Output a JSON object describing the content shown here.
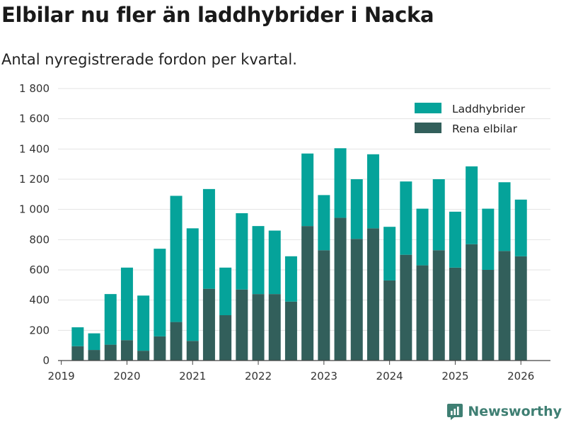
{
  "header": {
    "title": "Elbilar nu fler än laddhybrider i Nacka",
    "subtitle": "Antal nyregistrerade fordon per kvartal."
  },
  "brand": {
    "name": "Newsworthy"
  },
  "colors": {
    "hybrid": "#05a39a",
    "electric": "#325f5b",
    "grid": "#e3e3e3",
    "axis": "#444444"
  },
  "chart_data": {
    "type": "bar",
    "stacked": true,
    "title": "Elbilar nu fler än laddhybrider i Nacka",
    "subtitle": "Antal nyregistrerade fordon per kvartal.",
    "xlabel": "",
    "ylabel": "",
    "ylim": [
      0,
      1800
    ],
    "yticks": [
      0,
      200,
      400,
      600,
      800,
      1000,
      1200,
      1400,
      1600,
      1800
    ],
    "ytick_labels": [
      "0",
      "200",
      "400",
      "600",
      "800",
      "1 000",
      "1 200",
      "1 400",
      "1 600",
      "1 800"
    ],
    "xticks": [
      2019,
      2020,
      2021,
      2022,
      2023,
      2024,
      2025,
      2026
    ],
    "xlim": [
      2018.95,
      2026.45
    ],
    "legend_position": "top-right",
    "categories": [
      "2019 Q2",
      "2019 Q3",
      "2019 Q4",
      "2020 Q1",
      "2020 Q2",
      "2020 Q3",
      "2020 Q4",
      "2021 Q1",
      "2021 Q2",
      "2021 Q3",
      "2021 Q4",
      "2022 Q1",
      "2022 Q2",
      "2022 Q3",
      "2022 Q4",
      "2023 Q1",
      "2023 Q2",
      "2023 Q3",
      "2023 Q4",
      "2024 Q1",
      "2024 Q2",
      "2024 Q3",
      "2024 Q4",
      "2025 Q1",
      "2025 Q2",
      "2025 Q3",
      "2025 Q4",
      "2026 Q1"
    ],
    "x": [
      2019.25,
      2019.5,
      2019.75,
      2020.0,
      2020.25,
      2020.5,
      2020.75,
      2021.0,
      2021.25,
      2021.5,
      2021.75,
      2022.0,
      2022.25,
      2022.5,
      2022.75,
      2023.0,
      2023.25,
      2023.5,
      2023.75,
      2024.0,
      2024.25,
      2024.5,
      2024.75,
      2025.0,
      2025.25,
      2025.5,
      2025.75,
      2026.0
    ],
    "series": [
      {
        "name": "Rena elbilar",
        "values": [
          95,
          70,
          105,
          135,
          65,
          160,
          255,
          130,
          475,
          300,
          470,
          440,
          440,
          390,
          890,
          730,
          945,
          805,
          875,
          530,
          700,
          630,
          730,
          615,
          770,
          600,
          725,
          690
        ]
      },
      {
        "name": "Laddhybrider",
        "values": [
          125,
          110,
          335,
          480,
          365,
          580,
          835,
          745,
          660,
          315,
          505,
          450,
          420,
          300,
          480,
          365,
          460,
          395,
          490,
          355,
          485,
          375,
          470,
          370,
          515,
          405,
          455,
          375
        ]
      }
    ],
    "legend": [
      "Laddhybrider",
      "Rena elbilar"
    ]
  }
}
